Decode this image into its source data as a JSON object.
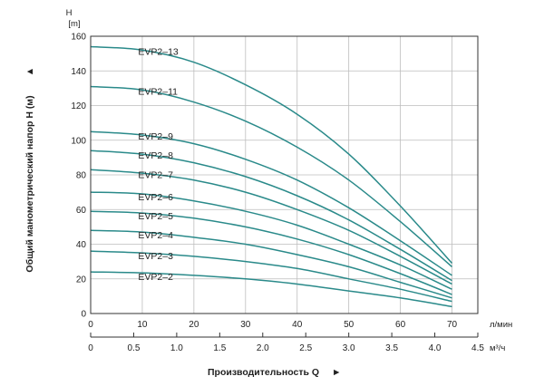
{
  "chart_data": {
    "type": "line",
    "ylabel": "Общий манометрический напор H (м)",
    "ylabel_marker": "▲",
    "y_unit_symbol": "H",
    "y_unit": "[m]",
    "ylim": [
      0,
      160
    ],
    "yticks": [
      0,
      20,
      40,
      60,
      80,
      100,
      120,
      140,
      160
    ],
    "xlabel": "Производительность Q",
    "xlabel_marker": "►",
    "xlim": [
      0,
      75
    ],
    "xticks": [
      0,
      10,
      20,
      30,
      40,
      50,
      60,
      70
    ],
    "x_unit": "л/мин",
    "x2_unit": "м³/ч",
    "x2lim": [
      0,
      4.5
    ],
    "x2ticks": [
      "0",
      "0.5",
      "1.0",
      "1.5",
      "2.0",
      "2.5",
      "3.0",
      "3.5",
      "4.0",
      "4.5"
    ],
    "grid": true,
    "series": [
      {
        "name": "EVP2–13",
        "points": [
          [
            0,
            154
          ],
          [
            10,
            152
          ],
          [
            20,
            145
          ],
          [
            30,
            132
          ],
          [
            40,
            115
          ],
          [
            50,
            92
          ],
          [
            60,
            62
          ],
          [
            70,
            29
          ]
        ]
      },
      {
        "name": "EVP2–11",
        "points": [
          [
            0,
            131
          ],
          [
            10,
            129
          ],
          [
            20,
            122
          ],
          [
            30,
            111
          ],
          [
            40,
            96
          ],
          [
            50,
            77
          ],
          [
            60,
            53
          ],
          [
            70,
            27
          ]
        ]
      },
      {
        "name": "EVP2–9",
        "points": [
          [
            0,
            105
          ],
          [
            10,
            103
          ],
          [
            20,
            98
          ],
          [
            30,
            89
          ],
          [
            40,
            77
          ],
          [
            50,
            61
          ],
          [
            60,
            42
          ],
          [
            70,
            22
          ]
        ]
      },
      {
        "name": "EVP2–8",
        "points": [
          [
            0,
            94
          ],
          [
            10,
            92
          ],
          [
            20,
            87
          ],
          [
            30,
            79
          ],
          [
            40,
            68
          ],
          [
            50,
            54
          ],
          [
            60,
            37
          ],
          [
            70,
            19
          ]
        ]
      },
      {
        "name": "EVP2–7",
        "points": [
          [
            0,
            83
          ],
          [
            10,
            81
          ],
          [
            20,
            77
          ],
          [
            30,
            70
          ],
          [
            40,
            60
          ],
          [
            50,
            48
          ],
          [
            60,
            33
          ],
          [
            70,
            17
          ]
        ]
      },
      {
        "name": "EVP2–6",
        "points": [
          [
            0,
            70
          ],
          [
            10,
            69
          ],
          [
            20,
            65
          ],
          [
            30,
            59
          ],
          [
            40,
            51
          ],
          [
            50,
            40
          ],
          [
            60,
            28
          ],
          [
            70,
            14
          ]
        ]
      },
      {
        "name": "EVP2–5",
        "points": [
          [
            0,
            59
          ],
          [
            10,
            58
          ],
          [
            20,
            55
          ],
          [
            30,
            50
          ],
          [
            40,
            43
          ],
          [
            50,
            34
          ],
          [
            60,
            23
          ],
          [
            70,
            11
          ]
        ]
      },
      {
        "name": "EVP2–4",
        "points": [
          [
            0,
            48
          ],
          [
            10,
            47
          ],
          [
            20,
            44
          ],
          [
            30,
            40
          ],
          [
            40,
            34
          ],
          [
            50,
            27
          ],
          [
            60,
            18
          ],
          [
            70,
            9
          ]
        ]
      },
      {
        "name": "EVP2–3",
        "points": [
          [
            0,
            36
          ],
          [
            10,
            35
          ],
          [
            20,
            33
          ],
          [
            30,
            30
          ],
          [
            40,
            26
          ],
          [
            50,
            20
          ],
          [
            60,
            14
          ],
          [
            70,
            7
          ]
        ]
      },
      {
        "name": "EVP2–2",
        "points": [
          [
            0,
            24
          ],
          [
            10,
            23.5
          ],
          [
            20,
            22
          ],
          [
            30,
            20
          ],
          [
            40,
            17
          ],
          [
            50,
            13
          ],
          [
            60,
            9
          ],
          [
            70,
            4
          ]
        ]
      }
    ],
    "colors": {
      "curve": "#2a8a8a",
      "grid": "#bdbdbd",
      "axis": "#333333"
    }
  }
}
